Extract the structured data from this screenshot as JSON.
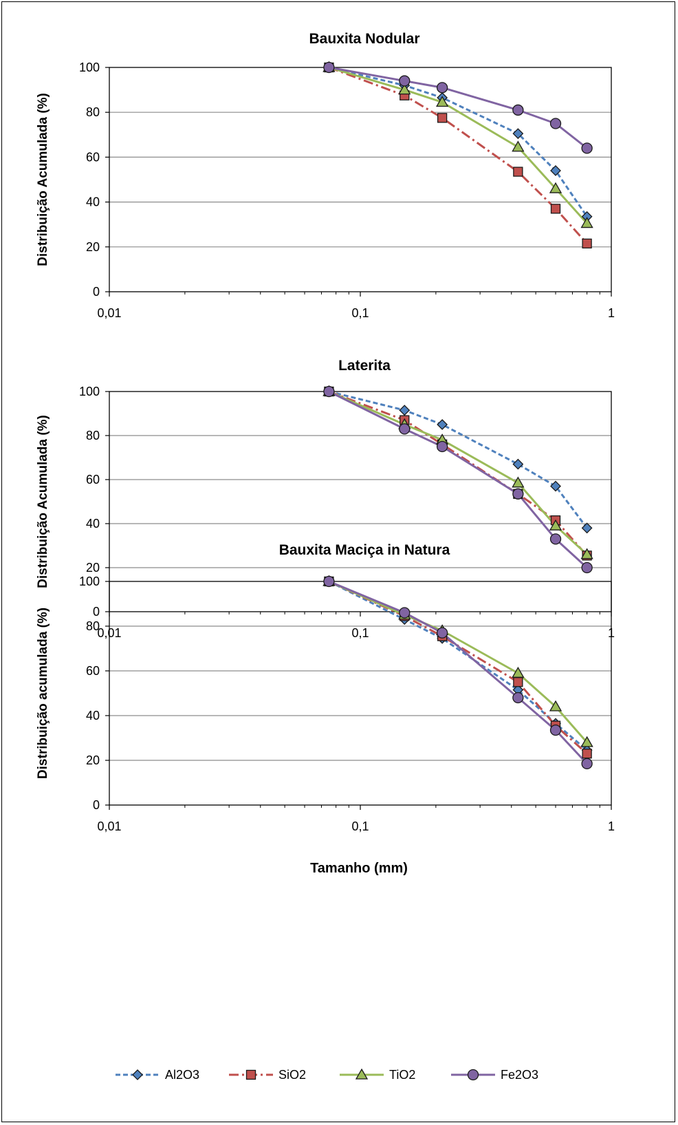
{
  "chart_data": [
    {
      "type": "line",
      "title": "Bauxita Nodular",
      "xlabel": "",
      "ylabel": "Distribuição Acumulada (%)",
      "xscale": "log",
      "xlim": [
        0.01,
        1
      ],
      "ylim": [
        0,
        100
      ],
      "x_tick_labels": [
        "0,01",
        "0,1",
        "1"
      ],
      "y_tick_labels": [
        "0",
        "20",
        "40",
        "60",
        "80",
        "100"
      ],
      "grid": "horizontal",
      "x": [
        0.075,
        0.15,
        0.212,
        0.425,
        0.6,
        0.8
      ],
      "series": [
        {
          "name": "Al2O3",
          "values": [
            100,
            92,
            86.5,
            70.5,
            54,
            33.5
          ]
        },
        {
          "name": "SiO2",
          "values": [
            100,
            87.5,
            77.5,
            53.5,
            37,
            21.5
          ]
        },
        {
          "name": "TiO2",
          "values": [
            100,
            90,
            84.5,
            64.5,
            46,
            30.5
          ]
        },
        {
          "name": "Fe2O3",
          "values": [
            100,
            94,
            91,
            81,
            75,
            64
          ]
        }
      ]
    },
    {
      "type": "line",
      "title": "Laterita",
      "xlabel": "",
      "ylabel": "Distribuição Acumulada (%)",
      "xscale": "log",
      "xlim": [
        0.01,
        1
      ],
      "ylim": [
        0,
        100
      ],
      "x_tick_labels": [
        "0,01",
        "0,1",
        "1"
      ],
      "y_tick_labels": [
        "0",
        "20",
        "40",
        "60",
        "80",
        "100"
      ],
      "grid": "horizontal",
      "x": [
        0.075,
        0.15,
        0.212,
        0.425,
        0.6,
        0.8
      ],
      "series": [
        {
          "name": "Al2O3",
          "values": [
            100,
            91.5,
            85,
            67,
            57,
            38
          ]
        },
        {
          "name": "SiO2",
          "values": [
            100,
            87,
            76,
            53.5,
            41.5,
            25.5
          ]
        },
        {
          "name": "TiO2",
          "values": [
            100,
            85,
            78,
            58.5,
            39,
            26
          ]
        },
        {
          "name": "Fe2O3",
          "values": [
            100,
            83,
            75,
            53.5,
            33,
            20
          ]
        }
      ]
    },
    {
      "type": "line",
      "title": "Bauxita Maciça in Natura",
      "xlabel": "Tamanho (mm)",
      "ylabel": "Distribuição acumulada (%)",
      "xscale": "log",
      "xlim": [
        0.01,
        1
      ],
      "ylim": [
        0,
        100
      ],
      "x_tick_labels": [
        "0,01",
        "0,1",
        "1"
      ],
      "y_tick_labels": [
        "0",
        "20",
        "40",
        "60",
        "80",
        "100"
      ],
      "grid": "horizontal",
      "x": [
        0.075,
        0.15,
        0.212,
        0.425,
        0.6,
        0.8
      ],
      "series": [
        {
          "name": "Al2O3",
          "values": [
            100,
            83,
            74.5,
            51.5,
            36.5,
            24.5
          ]
        },
        {
          "name": "SiO2",
          "values": [
            100,
            84.5,
            75.5,
            55,
            35.5,
            23
          ]
        },
        {
          "name": "TiO2",
          "values": [
            100,
            85,
            78,
            59,
            44,
            28
          ]
        },
        {
          "name": "Fe2O3",
          "values": [
            100,
            86,
            77,
            48,
            33.5,
            18.5
          ]
        }
      ]
    }
  ],
  "legend": {
    "placement": "bottom",
    "items": [
      "Al2O3",
      "SiO2",
      "TiO2",
      "Fe2O3"
    ]
  },
  "series_styles": {
    "Al2O3": {
      "line_color": "#4F81BD",
      "marker_fill": "#4F81BD",
      "marker": "diamond",
      "dash": "short-dash"
    },
    "SiO2": {
      "line_color": "#C0504D",
      "marker_fill": "#C0504D",
      "marker": "square",
      "dash": "dash-dot"
    },
    "TiO2": {
      "line_color": "#9BBB59",
      "marker_fill": "#9BBB59",
      "marker": "triangle",
      "dash": "solid"
    },
    "Fe2O3": {
      "line_color": "#8064A2",
      "marker_fill": "#8064A2",
      "marker": "circle",
      "dash": "solid"
    }
  }
}
